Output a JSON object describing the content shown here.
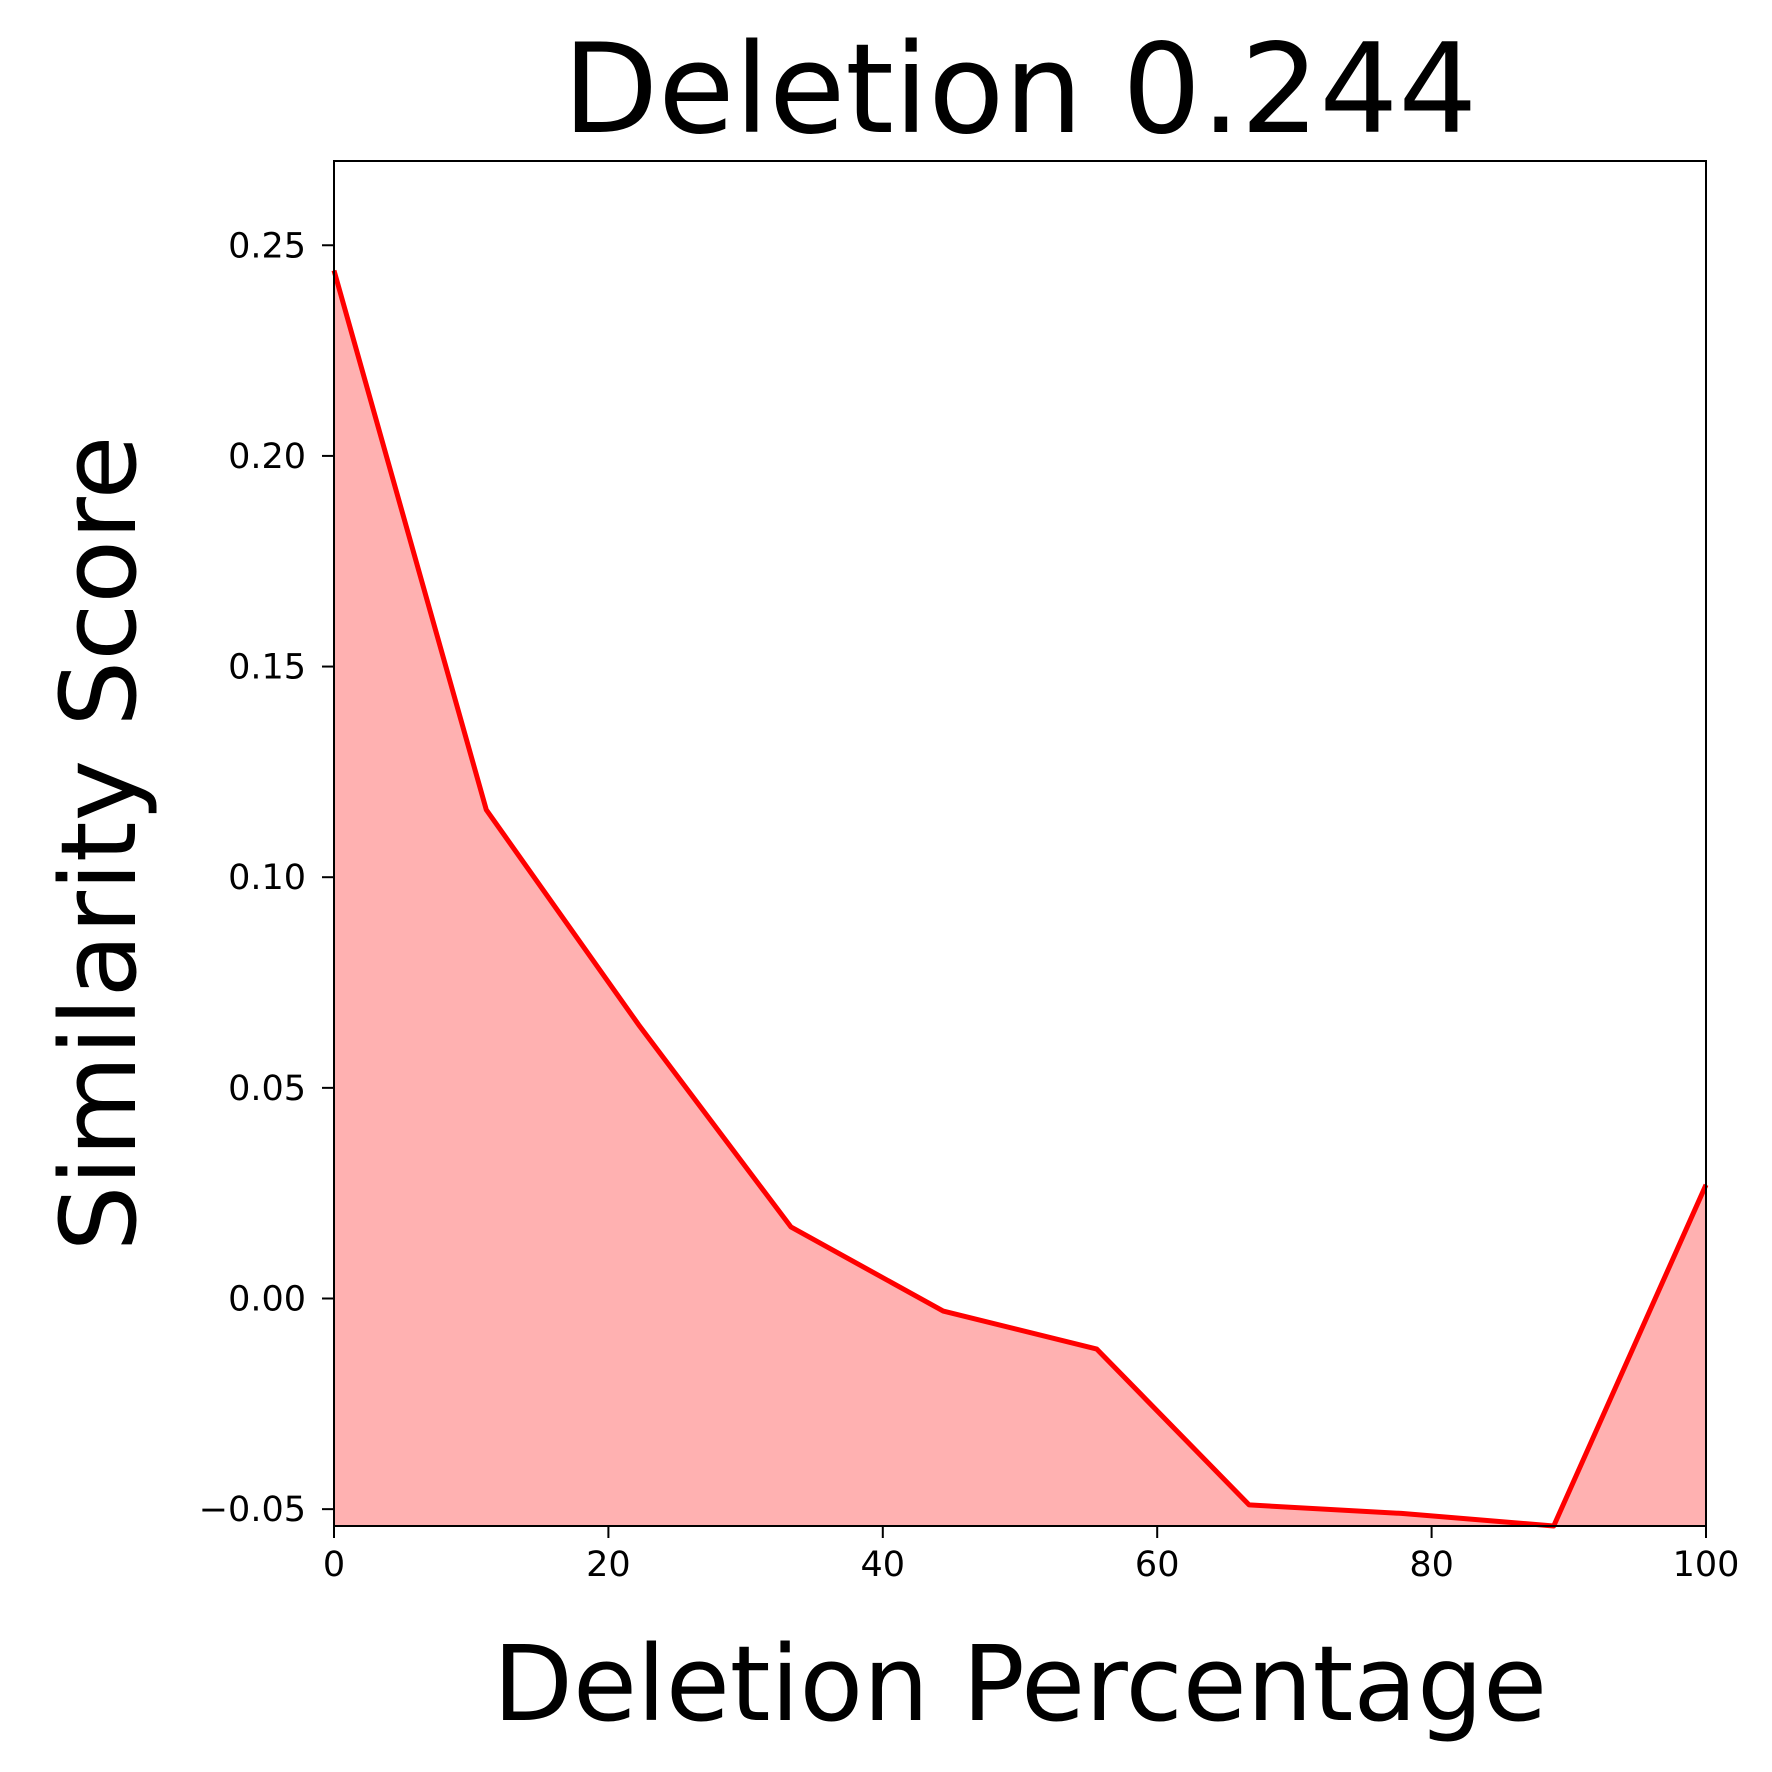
{
  "chart_data": {
    "type": "area",
    "title": "Deletion 0.244",
    "xlabel": "Deletion Percentage",
    "ylabel": "Similarity Score",
    "xlim": [
      0,
      100
    ],
    "ylim": [
      -0.054,
      0.27
    ],
    "x_ticks": [
      0,
      20,
      40,
      60,
      80,
      100
    ],
    "x_tick_labels": [
      "0",
      "20",
      "40",
      "60",
      "80",
      "100"
    ],
    "y_ticks": [
      -0.05,
      0.0,
      0.05,
      0.1,
      0.15,
      0.2,
      0.25
    ],
    "y_tick_labels": [
      "−0.05",
      "0.00",
      "0.05",
      "0.10",
      "0.15",
      "0.20",
      "0.25"
    ],
    "grid": false,
    "series": [
      {
        "x": [
          0,
          11.1,
          22.2,
          33.3,
          44.4,
          55.6,
          66.7,
          77.8,
          88.9,
          100
        ],
        "values": [
          0.244,
          0.116,
          0.065,
          0.017,
          -0.003,
          -0.012,
          -0.049,
          -0.051,
          -0.054,
          0.027
        ],
        "line_color": "#ff0000",
        "fill_color": "#ffb1b1"
      }
    ]
  }
}
